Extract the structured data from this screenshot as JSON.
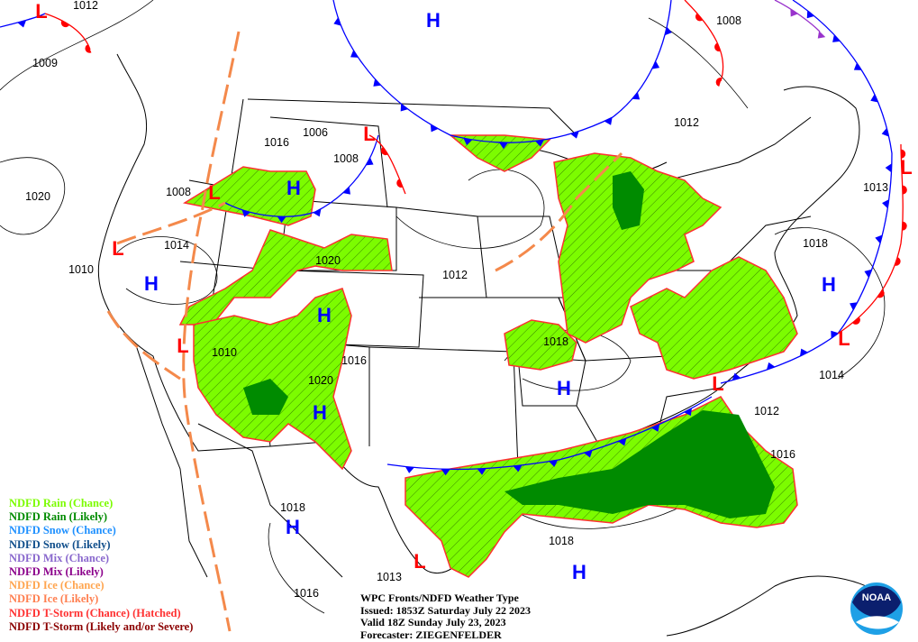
{
  "map": {
    "title_lines": [
      "WPC Fronts/NDFD Weather Type",
      "Issued: 1853Z Saturday July 22 2023",
      "Valid 18Z Sunday July 23, 2023",
      "Forecaster: ZIEGENFELDER"
    ],
    "logo_text": "NOAA",
    "legend": [
      {
        "label": "NDFD Rain (Chance)",
        "color": "#7cfc00"
      },
      {
        "label": "NDFD Rain (Likely)",
        "color": "#008b00"
      },
      {
        "label": "NDFD Snow (Chance)",
        "color": "#1e90ff"
      },
      {
        "label": "NDFD Snow (Likely)",
        "color": "#104e8b"
      },
      {
        "label": "NDFD Mix (Chance)",
        "color": "#8968cd"
      },
      {
        "label": "NDFD Mix (Likely)",
        "color": "#8b008b"
      },
      {
        "label": "NDFD Ice (Chance)",
        "color": "#ffa54f"
      },
      {
        "label": "NDFD Ice (Likely)",
        "color": "#ff7f50"
      },
      {
        "label": "NDFD T-Storm (Chance) (Hatched)",
        "color": "#ff3030"
      },
      {
        "label": "NDFD T-Storm (Likely and/or Severe)",
        "color": "#8b0000"
      }
    ],
    "highs": [
      "H",
      "H",
      "H",
      "H",
      "H",
      "H",
      "H",
      "H",
      "H"
    ],
    "lows": [
      "L",
      "L",
      "L",
      "L",
      "L",
      "L",
      "L",
      "L",
      "L"
    ],
    "high_color": "#0000ff",
    "low_color": "#ff0000",
    "isobar_labels": [
      "1012",
      "1009",
      "1020",
      "1016",
      "1006",
      "1008",
      "1008",
      "1014",
      "1010",
      "1020",
      "1012",
      "1010",
      "1016",
      "1020",
      "1018",
      "1008",
      "1012",
      "1013",
      "1018",
      "1014",
      "1012",
      "1016",
      "1018",
      "1018",
      "1016",
      "1013"
    ],
    "front_colors": {
      "cold": "#0000ff",
      "warm": "#ff0000",
      "occluded": "#9933cc",
      "trough": "#f4894b"
    }
  }
}
